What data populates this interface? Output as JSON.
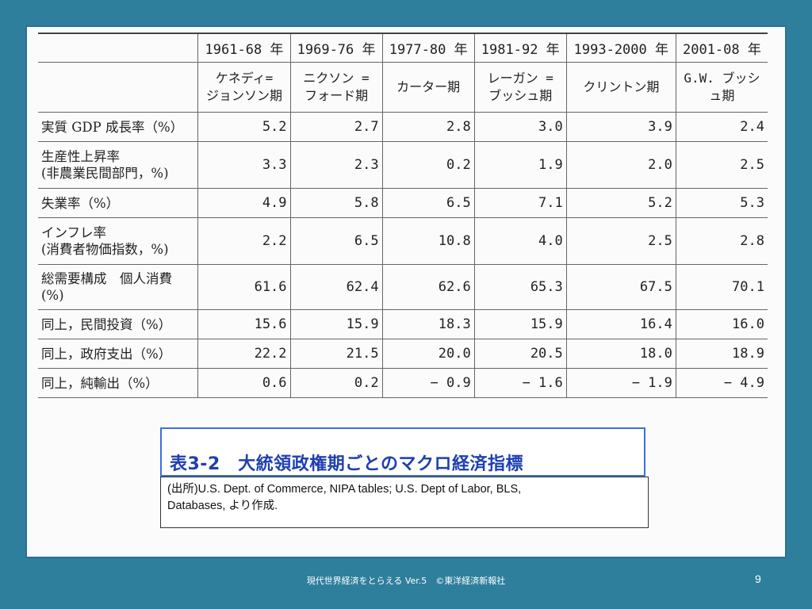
{
  "table": {
    "years": [
      "1961-68 年",
      "1969-76 年",
      "1977-80 年",
      "1981-92 年",
      "1993-2000 年",
      "2001-08 年"
    ],
    "presidents": [
      [
        "ケネディ=",
        "ジョンソン期"
      ],
      [
        "ニクソン =",
        "フォード期"
      ],
      [
        "カーター期"
      ],
      [
        "レーガン =",
        "ブッシュ期"
      ],
      [
        "クリントン期"
      ],
      [
        "G.W. ブッシ",
        "ュ期"
      ]
    ],
    "rows": [
      {
        "label": [
          "実質 GDP 成長率（%）"
        ],
        "values": [
          "5.2",
          "2.7",
          "2.8",
          "3.0",
          "3.9",
          "2.4"
        ]
      },
      {
        "label": [
          "生産性上昇率",
          "(非農業民間部門，%)"
        ],
        "values": [
          "3.3",
          "2.3",
          "0.2",
          "1.9",
          "2.0",
          "2.5"
        ]
      },
      {
        "label": [
          "失業率（%）"
        ],
        "values": [
          "4.9",
          "5.8",
          "6.5",
          "7.1",
          "5.2",
          "5.3"
        ]
      },
      {
        "label": [
          "インフレ率",
          "(消費者物価指数，%)"
        ],
        "values": [
          "2.2",
          "6.5",
          "10.8",
          "4.0",
          "2.5",
          "2.8"
        ]
      },
      {
        "label": [
          "総需要構成　個人消費",
          "(%)"
        ],
        "values": [
          "61.6",
          "62.4",
          "62.6",
          "65.3",
          "67.5",
          "70.1"
        ]
      },
      {
        "label": [
          "同上，民間投資（%）"
        ],
        "values": [
          "15.6",
          "15.9",
          "18.3",
          "15.9",
          "16.4",
          "16.0"
        ]
      },
      {
        "label": [
          "同上，政府支出（%）"
        ],
        "values": [
          "22.2",
          "21.5",
          "20.0",
          "20.5",
          "18.0",
          "18.9"
        ]
      },
      {
        "label": [
          "同上，純輸出（%）"
        ],
        "values": [
          "0.6",
          "0.2",
          "− 0.9",
          "− 1.6",
          "− 1.9",
          "− 4.9"
        ]
      }
    ]
  },
  "caption": "表3-2　大統領政権期ごとのマクロ経済指標",
  "source": {
    "line1": "(出所)U.S. Dept. of Commerce, NIPA tables; U.S. Dept of Labor, BLS,",
    "line2": "Databases, より作成."
  },
  "footer": "現代世界経済をとらえる Ver.5　©東洋経済新報社",
  "page_number": "9"
}
